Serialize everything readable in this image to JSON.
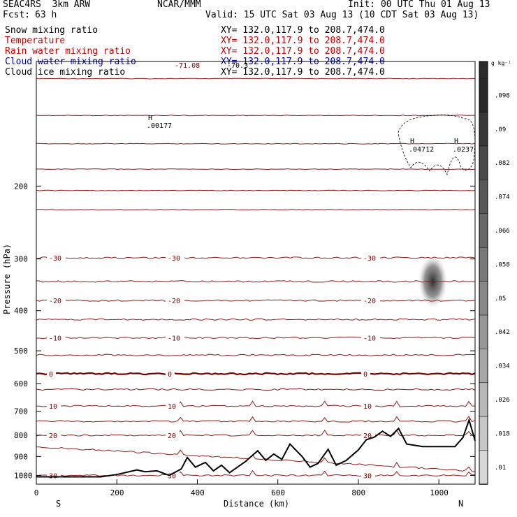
{
  "header": {
    "model": "SEAC4RS  3km ARW",
    "center": "NCAR/MMM",
    "init": "Init: 00 UTC Thu 01 Aug 13",
    "fcst_label": "Fcst:",
    "fcst_value": "63 h",
    "valid": "Valid: 15 UTC Sat 03 Aug 13 (10 CDT Sat 03 Aug 13)"
  },
  "fields": [
    {
      "name": "Snow mixing ratio",
      "xy": "XY= 132.0,117.9 to 208.7,474.0",
      "color": "#000000"
    },
    {
      "name": "Temperature",
      "xy": "XY= 132.0,117.9 to 208.7,474.0",
      "color": "#c00000"
    },
    {
      "name": "Rain water mixing ratio",
      "xy": "XY= 132.0,117.9 to 208.7,474.0",
      "color": "#c00000"
    },
    {
      "name": "Cloud water mixing ratio",
      "xy": "XY= 132.0,117.9 to 208.7,474.0",
      "color": "#0000a0"
    },
    {
      "name": "Cloud ice mixing ratio",
      "xy": "XY= 132.0,117.9 to 208.7,474.0",
      "color": "#000000"
    }
  ],
  "colorbar": {
    "units": "g kg⁻¹",
    "ticks": [
      ".098",
      ".09",
      ".082",
      ".074",
      ".066",
      ".058",
      ".05",
      ".042",
      ".034",
      ".026",
      ".018",
      ".01"
    ]
  },
  "annotations": {
    "top_value": "-71.08",
    "top_value2": "-70.3",
    "h_marker": "H",
    "h1": ".00177",
    "h2": ".04712",
    "h3": ".0237",
    "south": "S",
    "north": "N"
  },
  "chart_data": {
    "type": "cross-section contour",
    "xlabel": "Distance (km)",
    "ylabel": "Pressure (hPa)",
    "xlim": [
      0,
      1090
    ],
    "ylim": [
      1050,
      100
    ],
    "x_ticks": [
      0,
      200,
      400,
      600,
      800,
      1000
    ],
    "y_ticks": [
      200,
      300,
      400,
      500,
      600,
      700,
      800,
      900,
      1000
    ],
    "temperature_isotherms_C": [
      {
        "t": -70,
        "p": 110,
        "labels": []
      },
      {
        "t": -60,
        "p": 135,
        "labels": []
      },
      {
        "t": -50,
        "p": 158,
        "labels": []
      },
      {
        "t": -40,
        "p": 182,
        "labels": []
      },
      {
        "t": -35,
        "p": 205,
        "labels": []
      },
      {
        "t": -30,
        "p": 228,
        "labels": []
      },
      {
        "t": -30,
        "p": 298,
        "labels": [
          "-30"
        ]
      },
      {
        "t": -25,
        "p": 340,
        "labels": []
      },
      {
        "t": -20,
        "p": 378,
        "labels": [
          "-20"
        ]
      },
      {
        "t": -15,
        "p": 420,
        "labels": []
      },
      {
        "t": -10,
        "p": 465,
        "labels": [
          "-10"
        ]
      },
      {
        "t": -5,
        "p": 512,
        "labels": []
      },
      {
        "t": 0,
        "p": 568,
        "labels": [
          "0"
        ]
      },
      {
        "t": 5,
        "p": 620,
        "labels": []
      },
      {
        "t": 10,
        "p": 680,
        "labels": [
          "10"
        ]
      },
      {
        "t": 15,
        "p": 740,
        "labels": []
      },
      {
        "t": 20,
        "p": 800,
        "labels": [
          "20"
        ]
      },
      {
        "t": 25,
        "p": 852,
        "labels": []
      },
      {
        "t": 30,
        "p": 1000,
        "labels": [
          "30"
        ]
      }
    ],
    "terrain_surface_hPa": [
      [
        0,
        1008
      ],
      [
        160,
        1008
      ],
      [
        200,
        995
      ],
      [
        250,
        970
      ],
      [
        270,
        980
      ],
      [
        300,
        975
      ],
      [
        330,
        1000
      ],
      [
        360,
        965
      ],
      [
        375,
        905
      ],
      [
        395,
        955
      ],
      [
        420,
        930
      ],
      [
        440,
        975
      ],
      [
        460,
        945
      ],
      [
        480,
        985
      ],
      [
        520,
        925
      ],
      [
        550,
        872
      ],
      [
        570,
        920
      ],
      [
        590,
        888
      ],
      [
        610,
        915
      ],
      [
        630,
        840
      ],
      [
        660,
        900
      ],
      [
        680,
        955
      ],
      [
        700,
        935
      ],
      [
        725,
        865
      ],
      [
        745,
        945
      ],
      [
        770,
        920
      ],
      [
        800,
        868
      ],
      [
        820,
        820
      ],
      [
        840,
        808
      ],
      [
        860,
        782
      ],
      [
        880,
        805
      ],
      [
        900,
        770
      ],
      [
        920,
        840
      ],
      [
        960,
        852
      ],
      [
        1040,
        852
      ],
      [
        1060,
        810
      ],
      [
        1075,
        735
      ],
      [
        1090,
        825
      ]
    ],
    "rain_water_max_g_per_kg": 0.098,
    "rain_core": {
      "x": 985,
      "p_top": 300,
      "p_bottom": 385
    }
  }
}
